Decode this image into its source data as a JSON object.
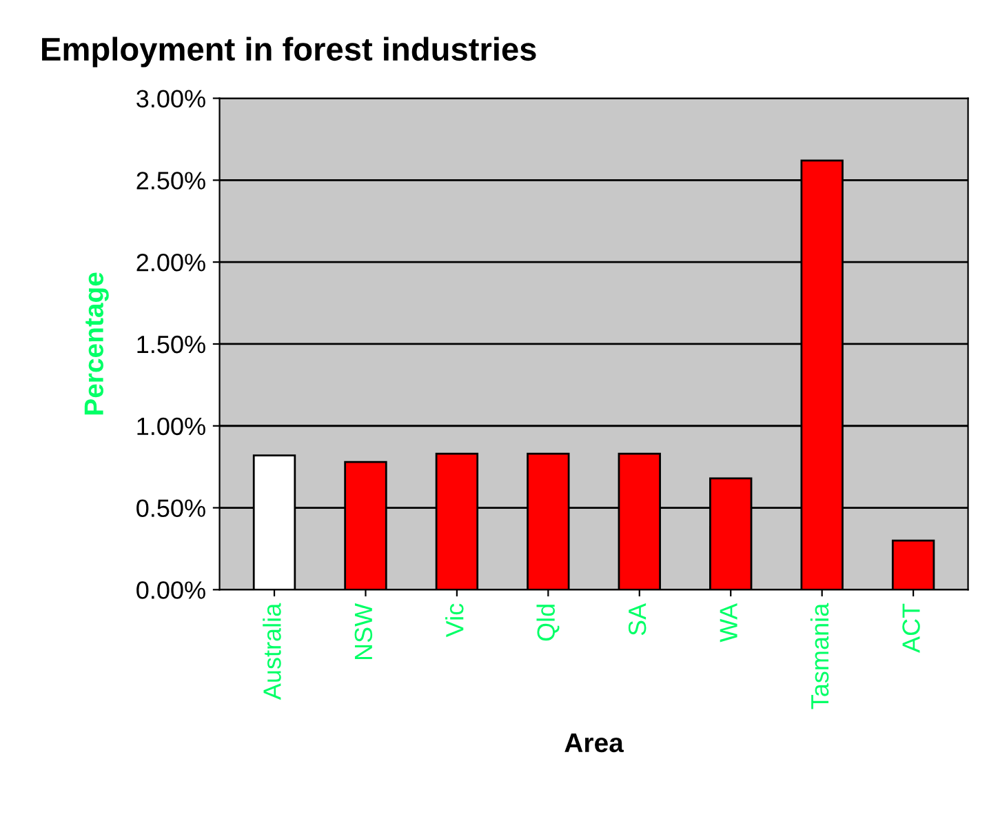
{
  "chart_data": {
    "type": "bar",
    "title": "Employment in forest industries",
    "xlabel": "Area",
    "ylabel": "Percentage",
    "categories": [
      "Australia",
      "NSW",
      "Vic",
      "Qld",
      "SA",
      "WA",
      "Tasmania",
      "ACT"
    ],
    "values": [
      0.82,
      0.78,
      0.83,
      0.83,
      0.83,
      0.68,
      2.62,
      0.3
    ],
    "colors": [
      "#ffffff",
      "#ff0000",
      "#ff0000",
      "#ff0000",
      "#ff0000",
      "#ff0000",
      "#ff0000",
      "#ff0000"
    ],
    "ylim": [
      0,
      3
    ],
    "yticks": [
      {
        "value": 0,
        "label": "0.00%"
      },
      {
        "value": 0.5,
        "label": "0.50%"
      },
      {
        "value": 1,
        "label": "1.00%"
      },
      {
        "value": 1.5,
        "label": "1.50%"
      },
      {
        "value": 2,
        "label": "2.00%"
      },
      {
        "value": 2.5,
        "label": "2.50%"
      },
      {
        "value": 3,
        "label": "3.00%"
      }
    ],
    "grid": "y"
  }
}
